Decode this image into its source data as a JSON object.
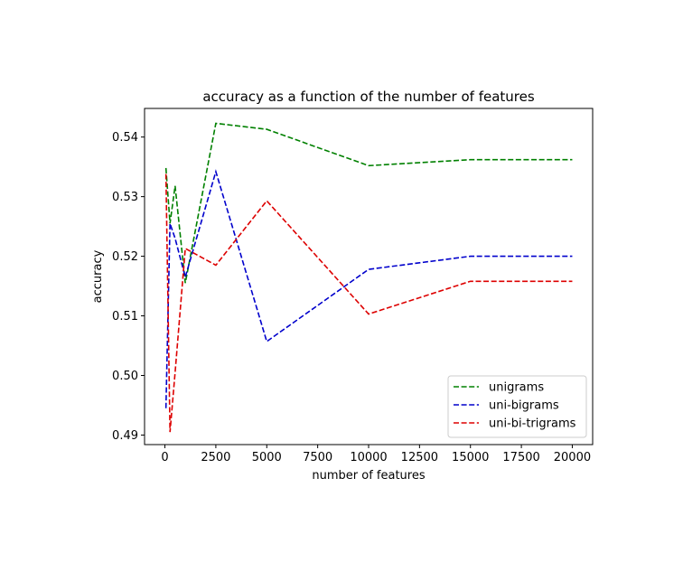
{
  "chart_data": {
    "type": "line",
    "title": "accuracy as a function of the number of features",
    "xlabel": "number of features",
    "ylabel": "accuracy",
    "xlim": [
      -1000,
      21000
    ],
    "ylim": [
      0.4884,
      0.5448
    ],
    "xticks": [
      0,
      2500,
      5000,
      7500,
      10000,
      12500,
      15000,
      17500,
      20000
    ],
    "xtick_labels": [
      "0",
      "2500",
      "5000",
      "7500",
      "10000",
      "12500",
      "15000",
      "17500",
      "20000"
    ],
    "yticks": [
      0.49,
      0.5,
      0.51,
      0.52,
      0.53,
      0.54
    ],
    "ytick_labels": [
      "0.49",
      "0.50",
      "0.51",
      "0.52",
      "0.53",
      "0.54"
    ],
    "grid": false,
    "legend_position": "lower-right",
    "series": [
      {
        "name": "unigrams",
        "color": "#008000",
        "line_style": "dashed",
        "x": [
          50,
          250,
          500,
          1000,
          2500,
          5000,
          10000,
          15000,
          20000
        ],
        "y": [
          0.5348,
          0.5255,
          0.5318,
          0.5155,
          0.5423,
          0.5413,
          0.5352,
          0.5362,
          0.5362
        ]
      },
      {
        "name": "uni-bigrams",
        "color": "#0000cc",
        "line_style": "dashed",
        "x": [
          50,
          250,
          500,
          1000,
          2500,
          5000,
          10000,
          15000,
          20000
        ],
        "y": [
          0.4945,
          0.5255,
          0.523,
          0.5165,
          0.5342,
          0.5057,
          0.5178,
          0.52,
          0.52
        ]
      },
      {
        "name": "uni-bi-trigrams",
        "color": "#dd0000",
        "line_style": "dashed",
        "x": [
          50,
          250,
          500,
          1000,
          2500,
          5000,
          10000,
          15000,
          20000
        ],
        "y": [
          0.5338,
          0.4905,
          0.5005,
          0.5213,
          0.5185,
          0.5293,
          0.5103,
          0.5158,
          0.5158
        ]
      }
    ]
  }
}
